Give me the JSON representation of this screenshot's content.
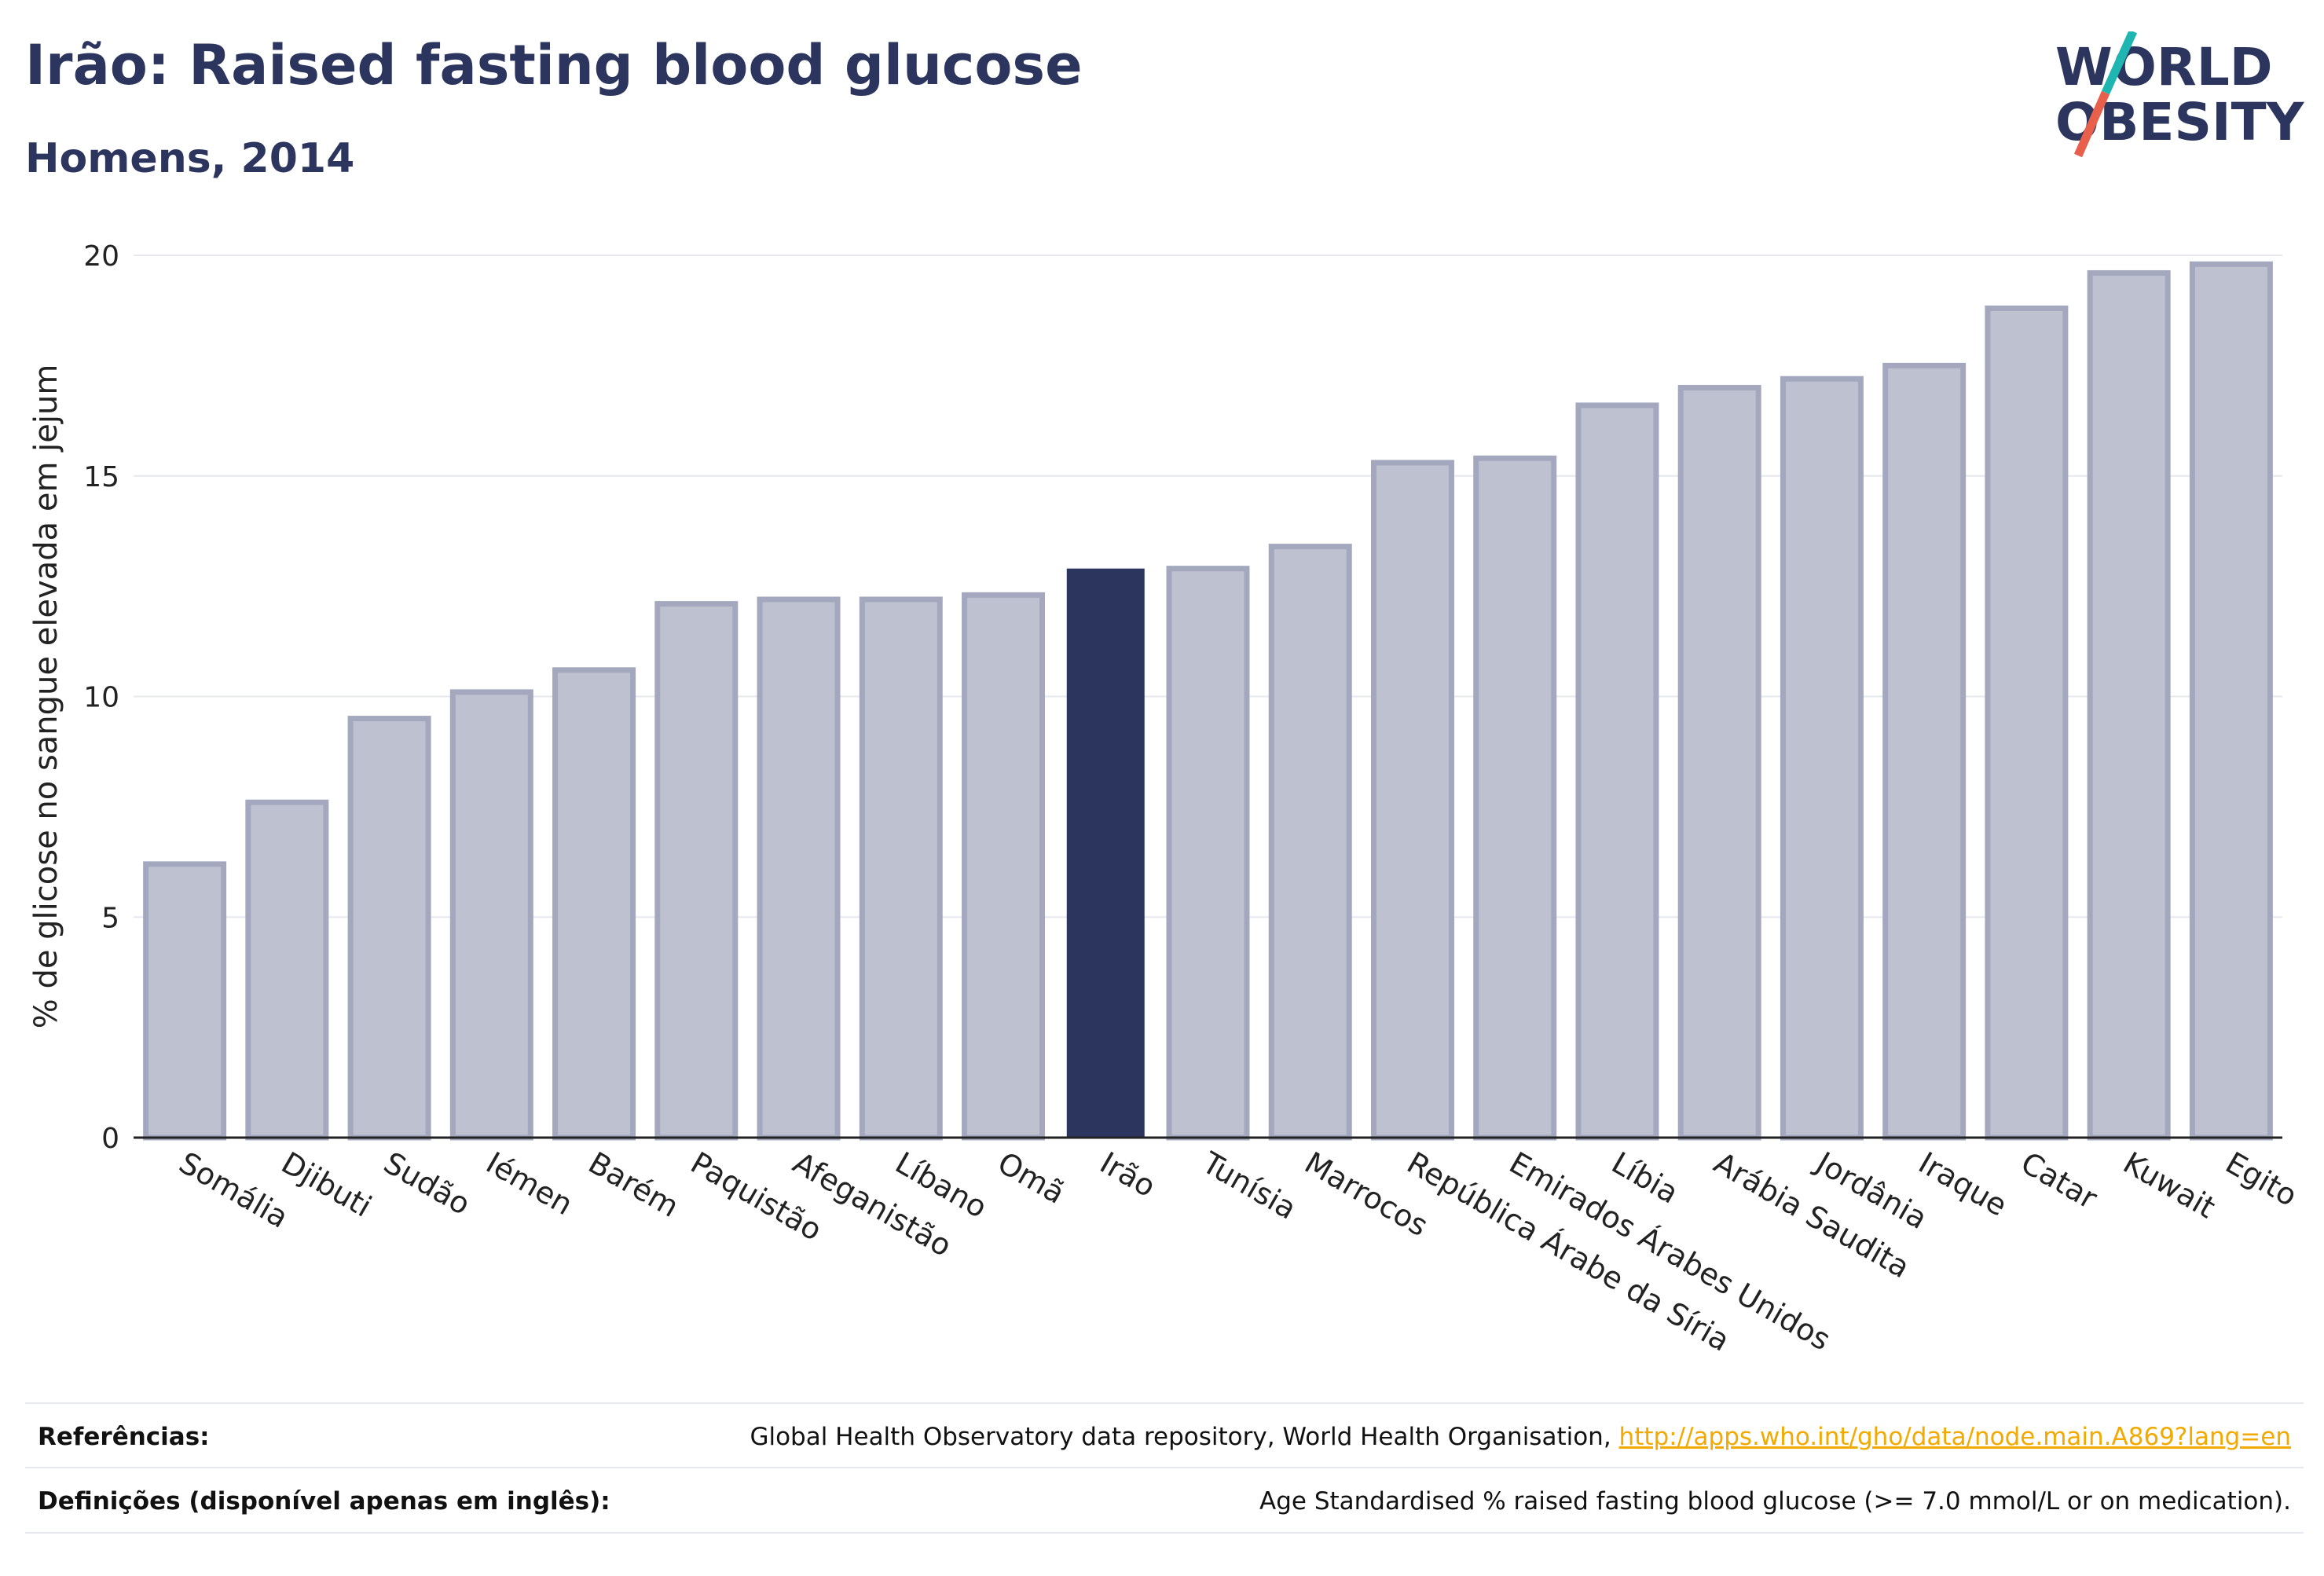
{
  "header": {
    "title": "Irão: Raised fasting blood glucose",
    "subtitle": "Homens, 2014"
  },
  "logo": {
    "line1": "WORLD",
    "line2": "OBESITY",
    "accent_colors": [
      "#1fb5b1",
      "#e8604c"
    ]
  },
  "chart_data": {
    "type": "bar",
    "title": "Irão: Raised fasting blood glucose",
    "subtitle": "Homens, 2014",
    "ylabel": "% de glicose no sangue elevada em jejum",
    "xlabel": "",
    "ylim": [
      0,
      20
    ],
    "yticks": [
      0,
      5,
      10,
      15,
      20
    ],
    "grid": true,
    "categories": [
      "Somália",
      "Djibuti",
      "Sudão",
      "Iémen",
      "Barém",
      "Paquistão",
      "Afeganistão",
      "Líbano",
      "Omã",
      "Irão",
      "Tunísia",
      "Marrocos",
      "República Árabe da Síria",
      "Emirados Árabes Unidos",
      "Líbia",
      "Arábia Saudita",
      "Jordânia",
      "Iraque",
      "Catar",
      "Kuwait",
      "Egito"
    ],
    "values": [
      6.2,
      7.6,
      9.5,
      10.1,
      10.6,
      12.1,
      12.2,
      12.2,
      12.3,
      12.9,
      12.9,
      13.4,
      15.3,
      15.4,
      16.6,
      17.0,
      17.2,
      17.5,
      18.8,
      19.6,
      19.8
    ],
    "highlight": "Irão",
    "colors": {
      "bar": "#bec1d0",
      "bar_edge": "#a3a8bf",
      "highlight": "#2b355e",
      "grid": "#e6e8ee",
      "axis": "#222222"
    }
  },
  "footer": {
    "references_label": "Referências:",
    "references_text": "Global Health Observatory data repository, World Health Organisation, ",
    "references_link": "http://apps.who.int/gho/data/node.main.A869?lang=en",
    "definitions_label": "Definições (disponível apenas em inglês):",
    "definitions_text": "Age Standardised % raised fasting blood glucose (>= 7.0 mmol/L or on medication)."
  }
}
